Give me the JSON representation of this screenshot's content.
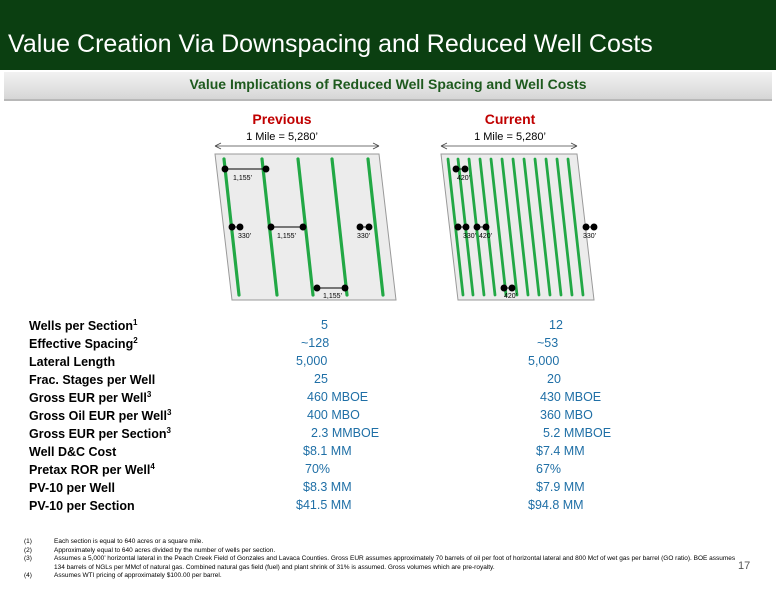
{
  "header": {
    "title": "Value Creation Via Downspacing and Reduced Well Costs",
    "subtitle": "Value Implications  of Reduced Well Spacing and Well Costs"
  },
  "diagrams": {
    "previous": {
      "label": "Previous",
      "mile": "1 Mile = 5,280’",
      "dims": [
        "1,155’",
        "330’",
        "1,155’",
        "330’",
        "1,155’"
      ]
    },
    "current": {
      "label": "Current",
      "mile": "1 Mile = 5,280’",
      "dims": [
        "420’",
        "330’",
        "420’",
        "330’",
        "420’"
      ]
    }
  },
  "table": {
    "labels": [
      "Wells per Section",
      "Effective Spacing",
      "Lateral Length",
      "Frac. Stages per Well",
      "Gross EUR per Well",
      "Gross Oil EUR per Well",
      "Gross EUR per Section",
      "Well D&C Cost",
      "Pretax ROR per Well",
      "PV-10 per Well",
      "PV-10 per Section"
    ],
    "sups": [
      "1",
      "2",
      "",
      "",
      "3",
      "3",
      "3",
      "",
      "4",
      "",
      ""
    ],
    "previous": [
      "5",
      "~128",
      "5,000",
      "25",
      "460 MBOE",
      "400 MBO",
      "2.3 MMBOE",
      "$8.1 MM",
      "70%",
      "$8.3 MM",
      "$41.5 MM"
    ],
    "current": [
      "12",
      "~53",
      "5,000",
      "20",
      "430 MBOE",
      "360 MBO",
      "5.2 MMBOE",
      "$7.4 MM",
      "67%",
      "$7.9 MM",
      "$94.8 MM"
    ]
  },
  "footnotes": [
    {
      "num": "(1)",
      "text": "Each section is equal to 640 acres or a square mile."
    },
    {
      "num": "(2)",
      "text": "Approximately equal to 640 acres divided by the number of wells per section."
    },
    {
      "num": "(3)",
      "text": "Assumes a 5,000’ horizontal lateral in the Peach Creek Field of Gonzales and Lavaca Counties. Gross EUR assumes approximately 70 barrels of oil per foot of horizontal lateral and 800 Mcf of wet gas per barrel (GO ratio).  BOE assumes 134 barrels of NGLs per MMcf of natural gas. Combined natural gas field (fuel) and plant shrink of 31% is assumed.  Gross volumes which are pre-royalty."
    },
    {
      "num": "(4)",
      "text": "Assumes WTI pricing of approximately $100.00 per barrel."
    }
  ],
  "page_number": "17",
  "colors": {
    "header_bg": "#0b3f11",
    "well_line": "#22a845",
    "value_text": "#1f6fa6",
    "diagram_label": "#c00000"
  }
}
